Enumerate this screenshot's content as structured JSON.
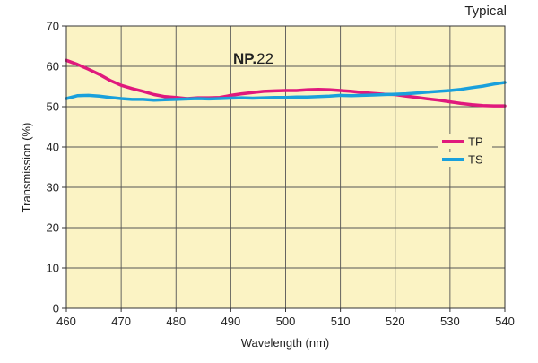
{
  "chart_data": {
    "type": "line",
    "annotation_top_right": "Typical",
    "model_label_bold": "NP.",
    "model_label_number": "22",
    "xlabel": "Wavelength (nm)",
    "ylabel": "Transmission (%)",
    "xlim": [
      460,
      540
    ],
    "ylim": [
      0,
      70
    ],
    "x_ticks": [
      460,
      470,
      480,
      490,
      500,
      510,
      520,
      530,
      540
    ],
    "y_ticks": [
      0,
      10,
      20,
      30,
      40,
      50,
      60,
      70
    ],
    "grid": true,
    "background_color": "#fbf3c4",
    "legend_position": "right-middle",
    "series": [
      {
        "name": "TP",
        "color": "#e0197d",
        "x": [
          460,
          462,
          464,
          466,
          468,
          470,
          472,
          474,
          476,
          478,
          480,
          482,
          484,
          486,
          488,
          490,
          492,
          494,
          496,
          498,
          500,
          502,
          504,
          506,
          508,
          510,
          512,
          514,
          516,
          518,
          520,
          522,
          524,
          526,
          528,
          530,
          532,
          534,
          536,
          538,
          540
        ],
        "y": [
          61.5,
          60.5,
          59.3,
          58.0,
          56.5,
          55.3,
          54.5,
          53.8,
          53.0,
          52.5,
          52.3,
          52.0,
          52.2,
          52.2,
          52.3,
          52.8,
          53.2,
          53.5,
          53.8,
          53.9,
          54.0,
          54.0,
          54.2,
          54.3,
          54.2,
          54.0,
          53.8,
          53.5,
          53.3,
          53.1,
          53.0,
          52.6,
          52.3,
          51.9,
          51.6,
          51.2,
          50.8,
          50.5,
          50.3,
          50.2,
          50.2
        ]
      },
      {
        "name": "TS",
        "color": "#1aa0dc",
        "x": [
          460,
          462,
          464,
          466,
          468,
          470,
          472,
          474,
          476,
          478,
          480,
          482,
          484,
          486,
          488,
          490,
          492,
          494,
          496,
          498,
          500,
          502,
          504,
          506,
          508,
          510,
          512,
          514,
          516,
          518,
          520,
          522,
          524,
          526,
          528,
          530,
          532,
          534,
          536,
          538,
          540
        ],
        "y": [
          52.0,
          52.7,
          52.8,
          52.6,
          52.3,
          52.0,
          51.8,
          51.8,
          51.6,
          51.7,
          51.8,
          51.9,
          52.0,
          51.9,
          52.0,
          52.1,
          52.2,
          52.1,
          52.2,
          52.3,
          52.3,
          52.4,
          52.4,
          52.5,
          52.6,
          52.8,
          52.7,
          52.8,
          52.9,
          53.0,
          53.1,
          53.2,
          53.4,
          53.6,
          53.8,
          54.0,
          54.3,
          54.7,
          55.1,
          55.6,
          56.0
        ]
      }
    ]
  }
}
